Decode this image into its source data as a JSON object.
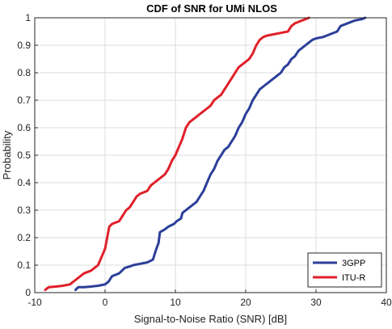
{
  "chart_data": {
    "type": "line",
    "title": "CDF of SNR for UMi NLOS",
    "xlabel": "Signal-to-Noise Ratio (SNR) [dB]",
    "ylabel": "Probability",
    "xlim": [
      -10,
      40
    ],
    "ylim": [
      0,
      1
    ],
    "xticks": [
      "-10",
      "0",
      "10",
      "20",
      "30",
      "40"
    ],
    "yticks": [
      "0",
      "0.1",
      "0.2",
      "0.3",
      "0.4",
      "0.5",
      "0.6",
      "0.7",
      "0.8",
      "0.9",
      "1"
    ],
    "grid": true,
    "legend_position": "bottom-right",
    "series": [
      {
        "name": "3GPP",
        "color": "#2b3f99",
        "x": [
          -4.2,
          -3.8,
          -3.0,
          -2.0,
          -1.0,
          0.0,
          0.5,
          1.0,
          2.0,
          2.8,
          3.5,
          4.0,
          5.0,
          6.0,
          6.8,
          7.3,
          7.6,
          7.8,
          8.5,
          9.0,
          9.8,
          10.2,
          10.8,
          11.0,
          11.5,
          12.0,
          13.0,
          13.5,
          14.0,
          14.5,
          15.0,
          15.5,
          16.0,
          16.5,
          17.0,
          17.5,
          18.0,
          18.5,
          19.0,
          19.5,
          20.0,
          20.5,
          21.0,
          21.5,
          22.0,
          22.5,
          23.5,
          24.5,
          25.0,
          25.5,
          26.0,
          26.5,
          27.0,
          27.5,
          28.0,
          28.5,
          29.0,
          29.5,
          30.0,
          31.0,
          32.0,
          33.0,
          33.5,
          34.5,
          35.5,
          36.5,
          37.0
        ],
        "y": [
          0.01,
          0.02,
          0.02,
          0.022,
          0.025,
          0.03,
          0.04,
          0.06,
          0.07,
          0.09,
          0.095,
          0.1,
          0.105,
          0.11,
          0.12,
          0.16,
          0.18,
          0.22,
          0.23,
          0.24,
          0.25,
          0.26,
          0.27,
          0.29,
          0.3,
          0.31,
          0.33,
          0.35,
          0.37,
          0.4,
          0.43,
          0.45,
          0.48,
          0.5,
          0.52,
          0.53,
          0.55,
          0.57,
          0.6,
          0.62,
          0.65,
          0.67,
          0.7,
          0.72,
          0.74,
          0.75,
          0.77,
          0.79,
          0.8,
          0.82,
          0.83,
          0.85,
          0.86,
          0.88,
          0.89,
          0.9,
          0.91,
          0.92,
          0.925,
          0.93,
          0.94,
          0.95,
          0.97,
          0.98,
          0.99,
          0.995,
          1.0
        ]
      },
      {
        "name": "ITU-R",
        "color": "#e0202a",
        "x": [
          -8.5,
          -8.0,
          -7.0,
          -6.0,
          -5.0,
          -4.0,
          -3.5,
          -3.0,
          -2.0,
          -1.0,
          -0.5,
          0.0,
          0.3,
          0.6,
          1.0,
          2.0,
          2.5,
          3.0,
          3.5,
          4.0,
          4.5,
          5.0,
          6.0,
          6.5,
          7.0,
          7.5,
          8.0,
          8.5,
          9.0,
          9.5,
          10.0,
          10.5,
          11.0,
          11.5,
          12.0,
          13.0,
          13.5,
          14.0,
          15.0,
          15.5,
          16.0,
          16.5,
          17.0,
          17.5,
          18.0,
          18.5,
          19.0,
          19.5,
          20.0,
          20.5,
          21.0,
          21.5,
          22.0,
          22.5,
          23.0,
          24.0,
          25.0,
          26.0,
          26.5,
          27.0,
          28.0,
          29.0
        ],
        "y": [
          0.01,
          0.02,
          0.022,
          0.025,
          0.03,
          0.05,
          0.06,
          0.07,
          0.08,
          0.1,
          0.13,
          0.16,
          0.2,
          0.24,
          0.25,
          0.26,
          0.28,
          0.3,
          0.31,
          0.33,
          0.35,
          0.36,
          0.37,
          0.39,
          0.4,
          0.41,
          0.42,
          0.43,
          0.45,
          0.48,
          0.5,
          0.53,
          0.56,
          0.6,
          0.62,
          0.64,
          0.65,
          0.66,
          0.68,
          0.7,
          0.71,
          0.72,
          0.74,
          0.76,
          0.78,
          0.8,
          0.82,
          0.83,
          0.84,
          0.85,
          0.87,
          0.9,
          0.92,
          0.93,
          0.935,
          0.94,
          0.945,
          0.95,
          0.97,
          0.98,
          0.99,
          1.0
        ]
      }
    ]
  }
}
